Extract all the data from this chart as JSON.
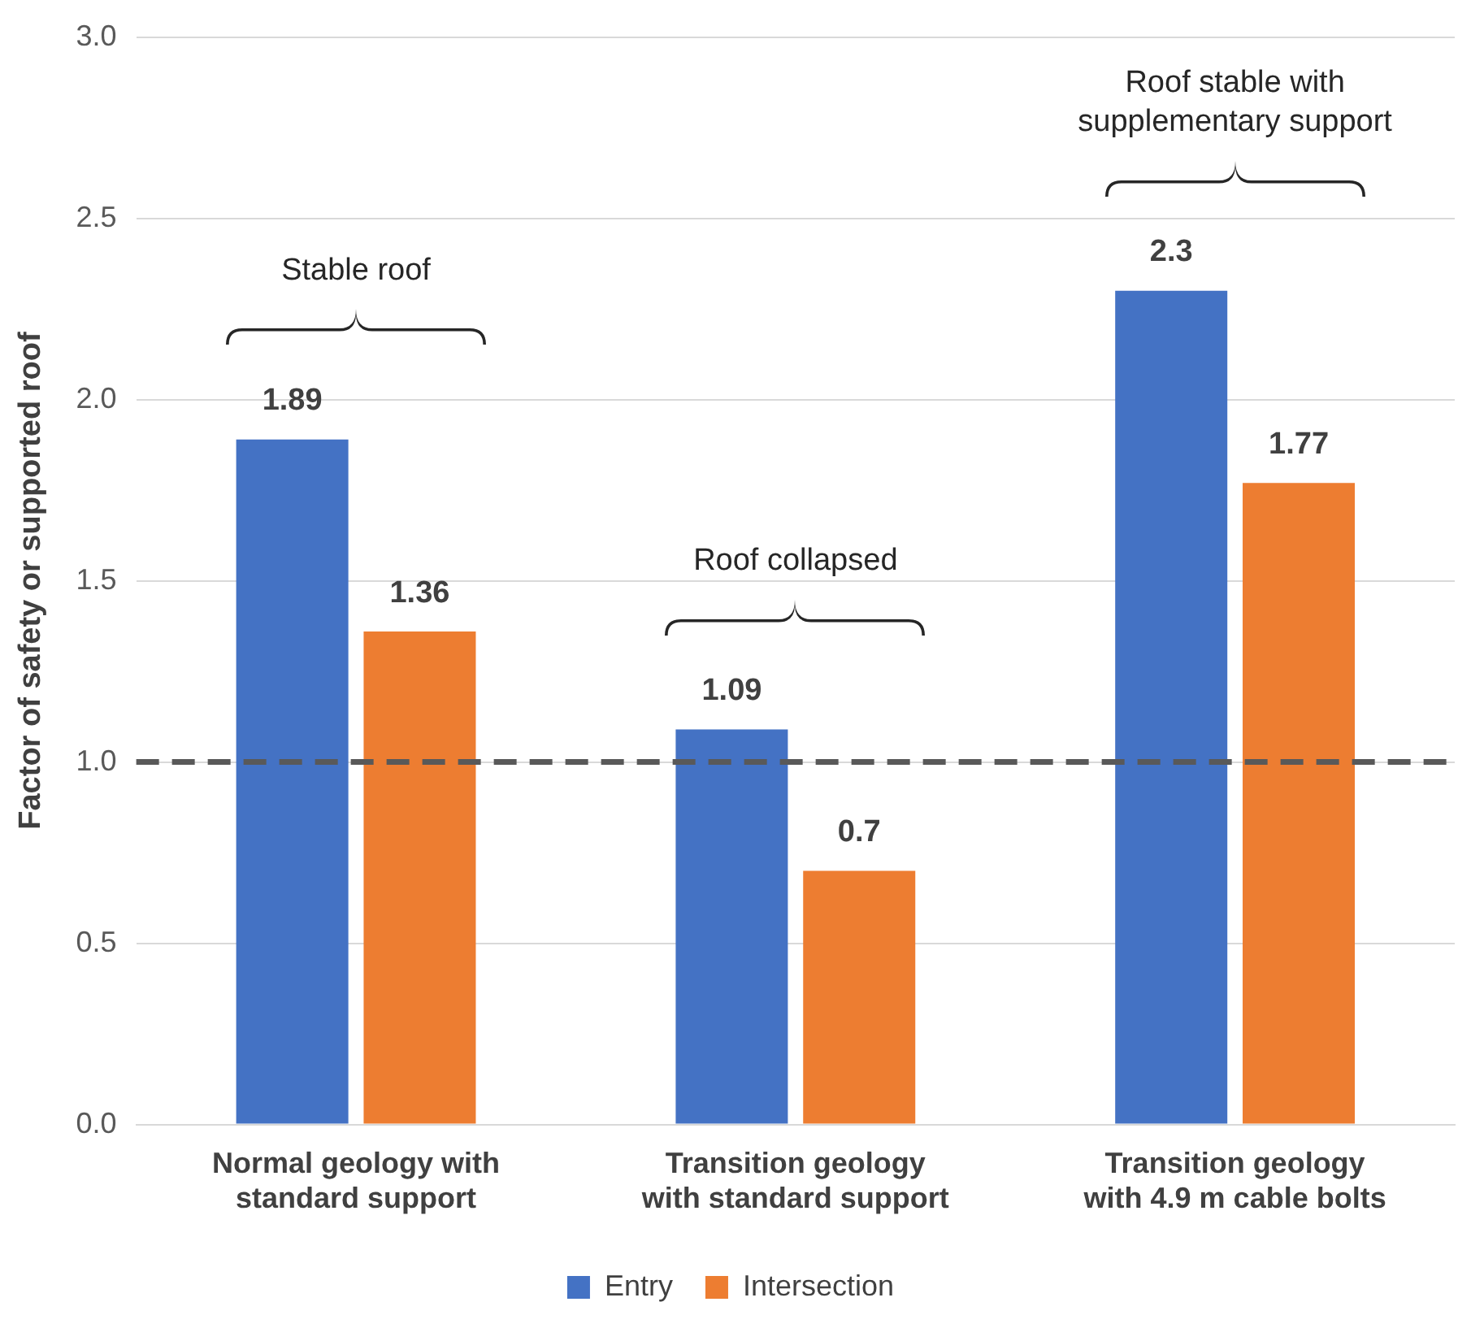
{
  "chart_data": {
    "type": "bar",
    "ylabel": "Factor of safety or supported roof",
    "categories": [
      "Normal geology with standard support",
      "Transition geology with standard support",
      "Transition geology with 4.9 m cable bolts"
    ],
    "series": [
      {
        "name": "Entry",
        "color": "#4472c4",
        "values": [
          1.89,
          1.09,
          2.3
        ]
      },
      {
        "name": "Intersection",
        "color": "#ed7d31",
        "values": [
          1.36,
          0.7,
          1.77
        ]
      }
    ],
    "ylim": [
      0,
      3
    ],
    "yticks": [
      {
        "value": 0,
        "label": "0.0"
      },
      {
        "value": 0.5,
        "label": "0.5"
      },
      {
        "value": 1,
        "label": "1.0"
      },
      {
        "value": 1.5,
        "label": "1.5"
      },
      {
        "value": 2,
        "label": "2.0"
      },
      {
        "value": 2.5,
        "label": "2.5"
      },
      {
        "value": 3,
        "label": "3.0"
      }
    ],
    "grid": "y",
    "legend": "bottom",
    "data_labels": true,
    "ref_lines": [
      {
        "axis": "y",
        "value": 1,
        "color": "#595959",
        "line_style": "dashed"
      }
    ],
    "annotations": [
      "Stable roof",
      "Roof collapsed",
      "Roof stable with supplementary support"
    ]
  }
}
